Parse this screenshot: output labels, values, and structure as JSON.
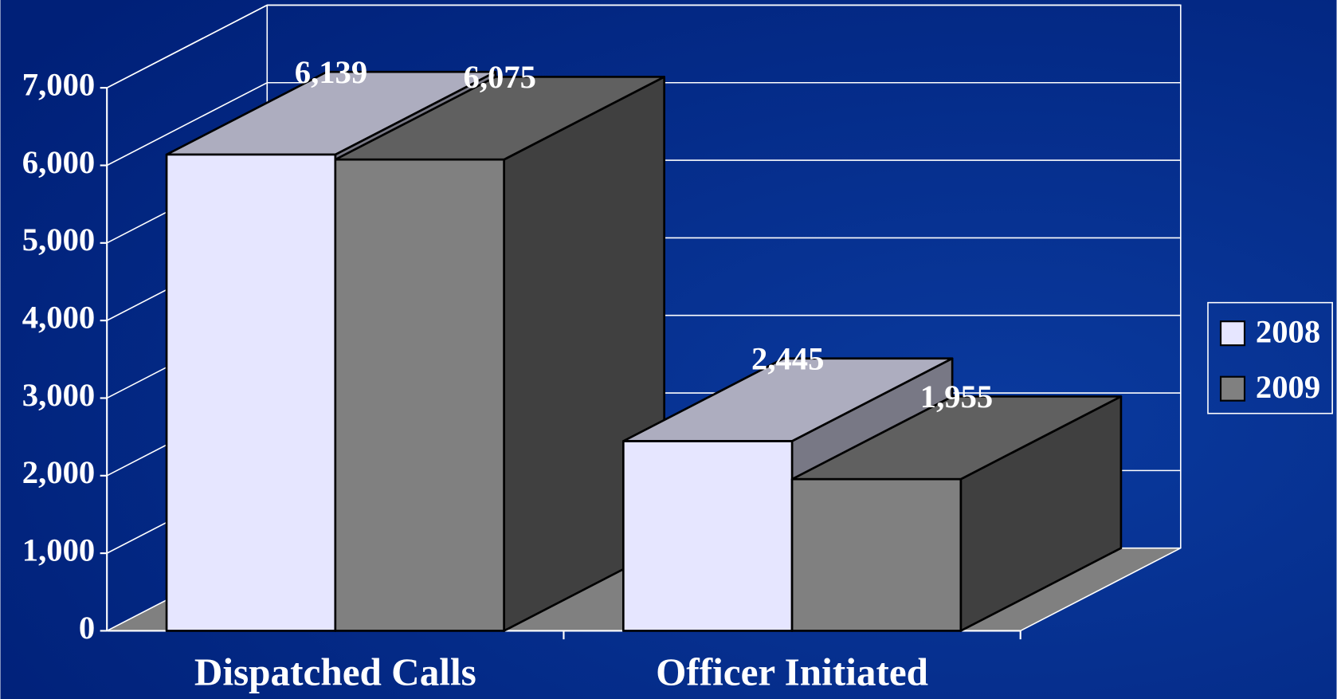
{
  "chart_data": {
    "type": "bar3d",
    "categories": [
      "Dispatched Calls",
      "Officer Initiated"
    ],
    "series": [
      {
        "name": "2008",
        "color": "#e6e6ff",
        "values": [
          6139,
          2445
        ],
        "value_labels": [
          "6,139",
          "2,445"
        ]
      },
      {
        "name": "2009",
        "color": "#808080",
        "values": [
          6075,
          1955
        ],
        "value_labels": [
          "6,075",
          "1,955"
        ]
      }
    ],
    "ylim": [
      0,
      7000
    ],
    "yticks": [
      0,
      {
        "value": 1000,
        "label": "1,000"
      },
      {
        "value": 2000,
        "label": "2,000"
      },
      {
        "value": 3000,
        "label": "3,000"
      },
      {
        "value": 4000,
        "label": "4,000"
      },
      {
        "value": 5000,
        "label": "5,000"
      },
      {
        "value": 6000,
        "label": "6,000"
      },
      {
        "value": 7000,
        "label": "7,000"
      }
    ],
    "grid": true,
    "legend": "right"
  }
}
